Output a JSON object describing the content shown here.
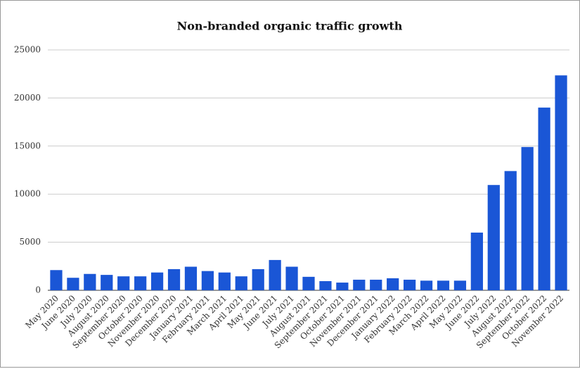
{
  "chart_data": {
    "type": "bar",
    "title": "Non-branded organic traffic growth",
    "categories": [
      "May 2020",
      "June 2020",
      "July 2020",
      "August 2020",
      "September 2020",
      "October 2020",
      "November 2020",
      "December 2020",
      "January 2021",
      "February 2021",
      "March 2021",
      "April 2021",
      "May 2021",
      "June 2021",
      "July 2021",
      "August 2021",
      "September 2021",
      "October 2021",
      "November 2021",
      "December 2021",
      "January 2022",
      "February 2022",
      "March 2022",
      "April 2022",
      "May 2022",
      "June 2022",
      "July 2022",
      "August 2022",
      "September 2022",
      "October 2022",
      "November 2022"
    ],
    "values": [
      2100,
      1300,
      1700,
      1600,
      1450,
      1450,
      1850,
      2200,
      2450,
      2000,
      1850,
      1450,
      2200,
      3150,
      2450,
      1400,
      950,
      800,
      1100,
      1100,
      1250,
      1100,
      1000,
      1000,
      1000,
      6000,
      10950,
      12400,
      14900,
      19000,
      22350
    ],
    "color": "#1a56d6",
    "ylim": [
      0,
      25000
    ],
    "yticks": [
      0,
      5000,
      10000,
      15000,
      20000,
      25000
    ],
    "grid": true
  }
}
